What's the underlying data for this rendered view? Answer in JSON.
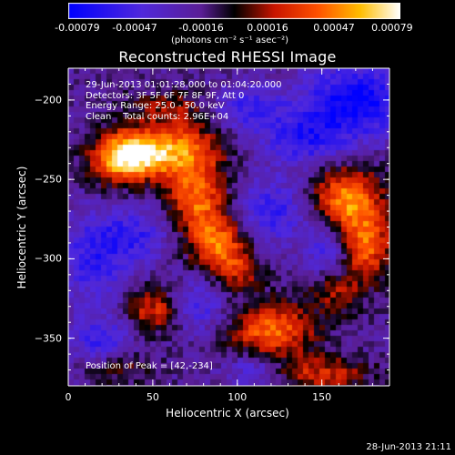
{
  "chart_data": {
    "type": "heatmap",
    "title": "Reconstructed RHESSI Image",
    "xlabel": "Heliocentric X (arcsec)",
    "ylabel": "Heliocentric Y (arcsec)",
    "xlim": [
      0,
      190
    ],
    "ylim": [
      -380,
      -180
    ],
    "x_ticks": [
      "0",
      "50",
      "100",
      "150"
    ],
    "x_tick_values": [
      0,
      50,
      100,
      150
    ],
    "y_ticks": [
      "-200",
      "-250",
      "-300",
      "-350"
    ],
    "y_tick_values": [
      -200,
      -250,
      -300,
      -350
    ],
    "colorbar": {
      "ticks": [
        "-0.00079",
        "-0.00047",
        "-0.00016",
        "0.00016",
        "0.00047",
        "0.00079"
      ],
      "range": [
        -0.00079,
        0.00079
      ],
      "unit_label": "(photons cm⁻² s⁻¹ asec⁻²)",
      "colormap": "blue-purple-black-red-orange-yellow-white"
    },
    "annotations": [
      "29-Jun-2013 01:01:28.000 to 01:04:20.000",
      "Detectors: 3F 5F 6F 7F 8F 9F, Att 0",
      "Energy Range: 25.0 - 50.0 keV",
      "Clean    Total counts: 2.96E+04"
    ],
    "peak_label": "Position of Peak = [42,-234]",
    "sources": [
      {
        "x": 42,
        "y": -234,
        "amp": 0.00079,
        "sx": 14,
        "sy": 10
      },
      {
        "x": 28,
        "y": -238,
        "amp": 0.00045,
        "sx": 12,
        "sy": 12
      },
      {
        "x": 70,
        "y": -232,
        "amp": 0.00055,
        "sx": 16,
        "sy": 12
      },
      {
        "x": 76,
        "y": -262,
        "amp": 0.0006,
        "sx": 12,
        "sy": 14
      },
      {
        "x": 88,
        "y": -290,
        "amp": 0.0006,
        "sx": 12,
        "sy": 12
      },
      {
        "x": 100,
        "y": -308,
        "amp": 0.00035,
        "sx": 10,
        "sy": 10
      },
      {
        "x": 165,
        "y": -262,
        "amp": 0.0007,
        "sx": 14,
        "sy": 14
      },
      {
        "x": 175,
        "y": -292,
        "amp": 0.0006,
        "sx": 12,
        "sy": 14
      },
      {
        "x": 158,
        "y": -320,
        "amp": 0.00035,
        "sx": 12,
        "sy": 10
      },
      {
        "x": 52,
        "y": -332,
        "amp": 0.0005,
        "sx": 12,
        "sy": 10
      },
      {
        "x": 120,
        "y": -345,
        "amp": 0.0006,
        "sx": 18,
        "sy": 12
      },
      {
        "x": 150,
        "y": -372,
        "amp": 0.0004,
        "sx": 20,
        "sy": 8
      },
      {
        "x": 30,
        "y": -368,
        "amp": 0.00025,
        "sx": 14,
        "sy": 8
      },
      {
        "x": 60,
        "y": -205,
        "amp": 0.0003,
        "sx": 18,
        "sy": 8
      }
    ],
    "negative_regions": [
      {
        "x": 170,
        "y": -200,
        "amp": -0.0006,
        "sx": 22,
        "sy": 16
      },
      {
        "x": 140,
        "y": -225,
        "amp": -0.0004,
        "sx": 18,
        "sy": 12
      },
      {
        "x": 120,
        "y": -270,
        "amp": -0.0004,
        "sx": 14,
        "sy": 14
      },
      {
        "x": 105,
        "y": -205,
        "amp": -0.00035,
        "sx": 16,
        "sy": 10
      },
      {
        "x": 15,
        "y": -300,
        "amp": -0.0004,
        "sx": 14,
        "sy": 20
      },
      {
        "x": 40,
        "y": -285,
        "amp": -0.00035,
        "sx": 14,
        "sy": 12
      },
      {
        "x": 75,
        "y": -330,
        "amp": -0.00035,
        "sx": 14,
        "sy": 12
      },
      {
        "x": 20,
        "y": -352,
        "amp": -0.0004,
        "sx": 12,
        "sy": 10
      },
      {
        "x": 155,
        "y": -295,
        "amp": -0.0004,
        "sx": 10,
        "sy": 14
      },
      {
        "x": 110,
        "y": -370,
        "amp": -0.0003,
        "sx": 12,
        "sy": 8
      }
    ]
  },
  "footer": {
    "timestamp": "28-Jun-2013 21:11"
  }
}
